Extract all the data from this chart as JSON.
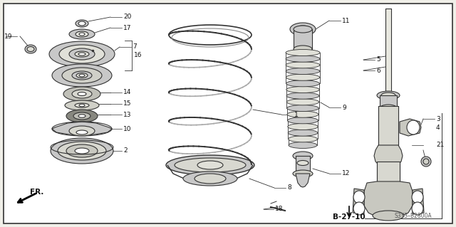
{
  "bg_color": "#f0efe8",
  "white": "#ffffff",
  "lc": "#333333",
  "gray1": "#c8c8c8",
  "gray2": "#aaaaaa",
  "gray3": "#888888",
  "dark": "#444444",
  "ref_code": "S3Y3–B2800A",
  "page_code": "B-27-10",
  "figw": 6.4,
  "figh": 3.19,
  "dpi": 100
}
